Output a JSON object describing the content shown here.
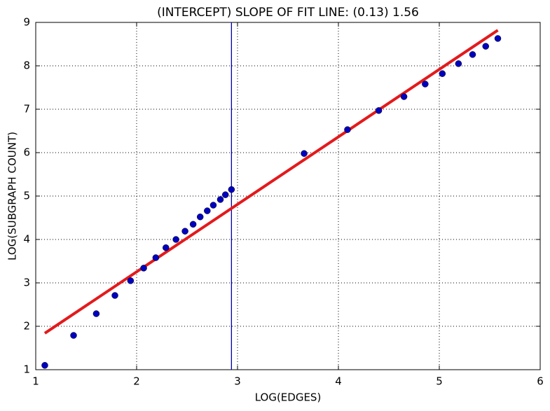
{
  "chart_data": {
    "type": "scatter",
    "title": "(INTERCEPT) SLOPE OF FIT LINE: (0.13) 1.56",
    "xlabel": "LOG(EDGES)",
    "ylabel": "LOG(SUBGRAPH COUNT)",
    "x": [
      1.09,
      1.375,
      1.6,
      1.785,
      1.94,
      2.07,
      2.19,
      2.29,
      2.39,
      2.48,
      2.56,
      2.63,
      2.7,
      2.76,
      2.83,
      2.88,
      2.94,
      3.66,
      4.09,
      4.4,
      4.65,
      4.86,
      5.03,
      5.19,
      5.33,
      5.46,
      5.58
    ],
    "y": [
      1.1,
      1.79,
      2.29,
      2.71,
      3.05,
      3.34,
      3.58,
      3.81,
      4.0,
      4.19,
      4.35,
      4.52,
      4.66,
      4.79,
      4.92,
      5.03,
      5.15,
      5.98,
      6.53,
      6.97,
      7.29,
      7.58,
      7.82,
      8.05,
      8.26,
      8.45,
      8.63
    ],
    "color": "#0000bf",
    "fit_line": {
      "x": [
        1.09,
        5.58
      ],
      "y": [
        1.84,
        8.82
      ],
      "color": "#e31a1c"
    },
    "vline": {
      "x": 2.94,
      "color": "#0000aa"
    },
    "xlim": [
      1,
      6
    ],
    "xticks": [
      1,
      2,
      3,
      4,
      5,
      6
    ],
    "ylim": [
      1,
      9
    ],
    "yticks": [
      1,
      2,
      3,
      4,
      5,
      6,
      7,
      8,
      9
    ],
    "grid": true
  }
}
